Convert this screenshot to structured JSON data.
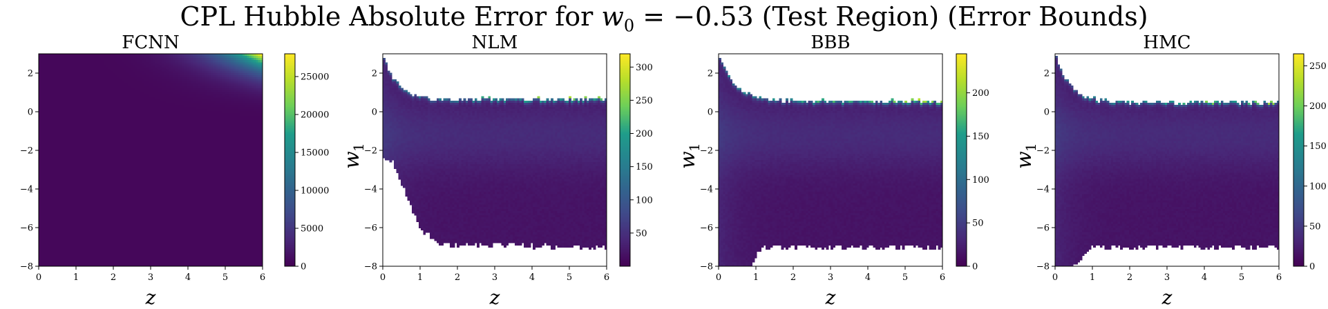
{
  "figure": {
    "title_prefix": "CPL Hubble Absolute Error for ",
    "title_math": "w",
    "title_sub": "0",
    "title_suffix": " = −0.53 (Test Region) (Error Bounds)"
  },
  "colormap": "viridis",
  "colormap_stops": [
    "#440154",
    "#482777",
    "#3f4a8a",
    "#31678e",
    "#26838f",
    "#1f9d8a",
    "#6cce5a",
    "#b6de2b",
    "#fee825"
  ],
  "chart_data": [
    {
      "type": "heatmap",
      "title": "FCNN",
      "xlabel": "z",
      "ylabel": "",
      "xlim": [
        0,
        6
      ],
      "ylim": [
        -8,
        3
      ],
      "x_ticks": [
        0,
        1,
        2,
        3,
        4,
        5,
        6
      ],
      "y_ticks": [
        -8,
        -6,
        -4,
        -2,
        0,
        2
      ],
      "colorbar": {
        "min": 0,
        "max": 28000,
        "ticks": [
          0,
          5000,
          10000,
          15000,
          20000,
          25000
        ]
      },
      "pattern": "fcnn",
      "mask": "none"
    },
    {
      "type": "heatmap",
      "title": "NLM",
      "xlabel": "z",
      "ylabel": "w1",
      "xlim": [
        0,
        6
      ],
      "ylim": [
        -8,
        3
      ],
      "x_ticks": [
        0,
        1,
        2,
        3,
        4,
        5,
        6
      ],
      "y_ticks": [
        -8,
        -6,
        -4,
        -2,
        0,
        2
      ],
      "colorbar": {
        "min": 0,
        "max": 320,
        "ticks": [
          50,
          100,
          150,
          200,
          250,
          300
        ]
      },
      "pattern": "bounded",
      "mask": "nlm"
    },
    {
      "type": "heatmap",
      "title": "BBB",
      "xlabel": "z",
      "ylabel": "w1",
      "xlim": [
        0,
        6
      ],
      "ylim": [
        -8,
        3
      ],
      "x_ticks": [
        0,
        1,
        2,
        3,
        4,
        5,
        6
      ],
      "y_ticks": [
        -8,
        -6,
        -4,
        -2,
        0,
        2
      ],
      "colorbar": {
        "min": 0,
        "max": 245,
        "ticks": [
          0,
          50,
          100,
          150,
          200
        ]
      },
      "pattern": "bounded",
      "mask": "bbb"
    },
    {
      "type": "heatmap",
      "title": "HMC",
      "xlabel": "z",
      "ylabel": "w1",
      "xlim": [
        0,
        6
      ],
      "ylim": [
        -8,
        3
      ],
      "x_ticks": [
        0,
        1,
        2,
        3,
        4,
        5,
        6
      ],
      "y_ticks": [
        -8,
        -6,
        -4,
        -2,
        0,
        2
      ],
      "colorbar": {
        "min": 0,
        "max": 265,
        "ticks": [
          0,
          50,
          100,
          150,
          200,
          250
        ]
      },
      "pattern": "bounded",
      "mask": "hmc"
    }
  ]
}
